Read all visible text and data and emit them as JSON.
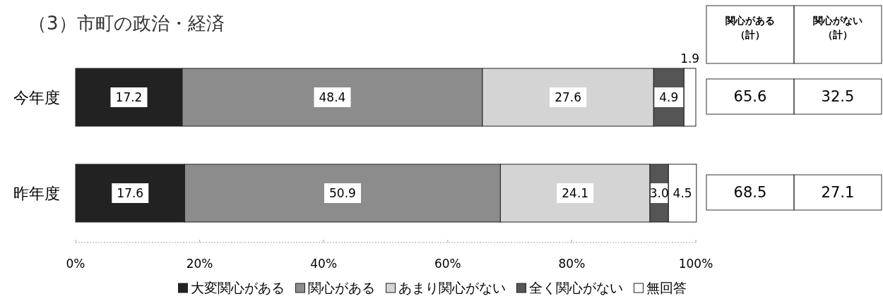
{
  "chart_data": {
    "type": "bar",
    "orientation": "horizontal",
    "stacked": true,
    "title": "（3）市町の政治・経済",
    "categories": [
      "今年度",
      "昨年度"
    ],
    "series": [
      {
        "name": "大変関心がある",
        "color": "#222222",
        "values": [
          17.2,
          17.6
        ],
        "value_labels": [
          "17.2",
          "17.6"
        ]
      },
      {
        "name": "関心がある",
        "color": "#8c8c8c",
        "values": [
          48.4,
          50.9
        ],
        "value_labels": [
          "48.4",
          "50.9"
        ]
      },
      {
        "name": "あまり関心がない",
        "color": "#d4d4d4",
        "values": [
          27.6,
          24.1
        ],
        "value_labels": [
          "27.6",
          "24.1"
        ]
      },
      {
        "name": "全く関心がない",
        "color": "#555555",
        "values": [
          4.9,
          3.0
        ],
        "value_labels": [
          "4.9",
          "3.0"
        ]
      },
      {
        "name": "無回答",
        "color": "#ffffff",
        "values": [
          1.9,
          4.5
        ],
        "value_labels": [
          "1.9",
          "4.5"
        ]
      }
    ],
    "xlim": [
      0,
      100
    ],
    "xticks": [
      {
        "value": 0,
        "label": "0%"
      },
      {
        "value": 20,
        "label": "20%"
      },
      {
        "value": 40,
        "label": "40%"
      },
      {
        "value": 60,
        "label": "60%"
      },
      {
        "value": 80,
        "label": "80%"
      },
      {
        "value": 100,
        "label": "100%"
      }
    ],
    "legend": "bottom",
    "annotations": [
      "関心がある",
      "（計）",
      "関心がない",
      "（計）",
      "65.6",
      "32.5",
      "68.5",
      "27.1"
    ]
  }
}
